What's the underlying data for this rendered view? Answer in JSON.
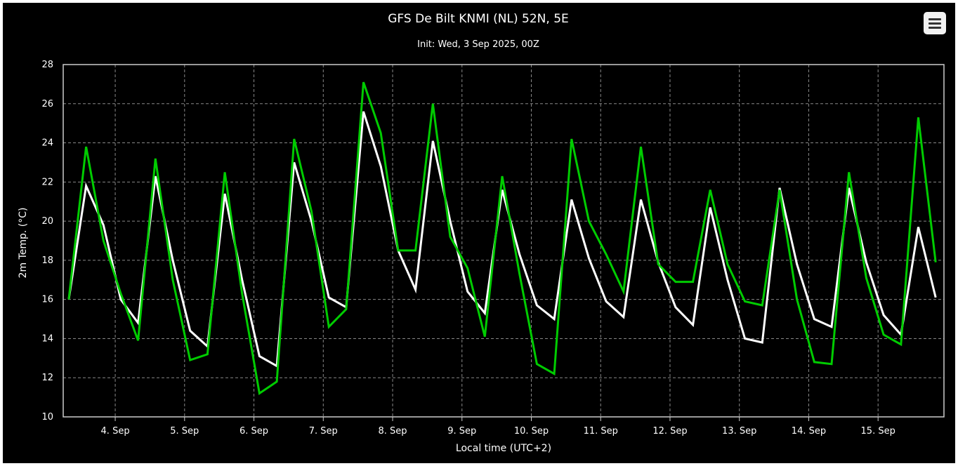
{
  "chart_data": {
    "type": "line",
    "title": "GFS De Bilt KNMI (NL) 52N, 5E",
    "subtitle": "Init: Wed, 3 Sep 2025, 00Z",
    "xlabel": "Local time (UTC+2)",
    "ylabel": "2m Temp. (°C)",
    "ylim": [
      10,
      28
    ],
    "yticks": [
      10,
      12,
      14,
      16,
      18,
      20,
      22,
      24,
      26,
      28
    ],
    "xlim": [
      3.25,
      15.95
    ],
    "xticks": [
      {
        "x": 4,
        "label": "4. Sep"
      },
      {
        "x": 5,
        "label": "5. Sep"
      },
      {
        "x": 6,
        "label": "6. Sep"
      },
      {
        "x": 7,
        "label": "7. Sep"
      },
      {
        "x": 8,
        "label": "8. Sep"
      },
      {
        "x": 9,
        "label": "9. Sep"
      },
      {
        "x": 10,
        "label": "10. Sep"
      },
      {
        "x": 11,
        "label": "11. Sep"
      },
      {
        "x": 12,
        "label": "12. Sep"
      },
      {
        "x": 13,
        "label": "13. Sep"
      },
      {
        "x": 14,
        "label": "14. Sep"
      },
      {
        "x": 15,
        "label": "15. Sep"
      }
    ],
    "grid": true,
    "legend": false,
    "colors": {
      "background": "#000000",
      "grid": "#888888",
      "series_a": "#ffffff",
      "series_b": "#00cc00"
    },
    "series": [
      {
        "color": "#ffffff",
        "x": [
          3.33,
          3.58,
          3.83,
          4.08,
          4.33,
          4.58,
          4.83,
          5.08,
          5.33,
          5.58,
          5.83,
          6.08,
          6.33,
          6.58,
          6.83,
          7.08,
          7.33,
          7.58,
          7.83,
          8.08,
          8.33,
          8.58,
          8.83,
          9.08,
          9.33,
          9.58,
          9.83,
          10.08,
          10.33,
          10.58,
          10.83,
          11.08,
          11.33,
          11.58,
          11.83,
          12.08,
          12.33,
          12.58,
          12.83,
          13.08,
          13.33,
          13.58,
          13.83,
          14.08,
          14.33,
          14.58,
          14.83,
          15.08,
          15.33,
          15.58,
          15.83
        ],
        "y": [
          16.0,
          21.8,
          19.8,
          16.0,
          14.8,
          22.3,
          18.0,
          14.4,
          13.6,
          21.4,
          17.0,
          13.1,
          12.6,
          23.0,
          20.0,
          16.1,
          15.6,
          25.6,
          22.8,
          18.5,
          16.5,
          24.1,
          20.0,
          16.4,
          15.3,
          21.6,
          18.3,
          15.7,
          15.0,
          21.1,
          18.1,
          15.9,
          15.1,
          21.1,
          17.9,
          15.6,
          14.7,
          20.7,
          17.0,
          14.0,
          13.8,
          21.7,
          17.8,
          15.0,
          14.6,
          21.7,
          17.9,
          15.2,
          14.2,
          19.7,
          16.1
        ]
      },
      {
        "color": "#00cc00",
        "x": [
          3.33,
          3.58,
          3.83,
          4.08,
          4.33,
          4.58,
          4.83,
          5.08,
          5.33,
          5.58,
          5.83,
          6.08,
          6.33,
          6.58,
          6.83,
          7.08,
          7.33,
          7.58,
          7.83,
          8.08,
          8.33,
          8.58,
          8.83,
          9.08,
          9.33,
          9.58,
          9.83,
          10.08,
          10.33,
          10.58,
          10.83,
          11.08,
          11.33,
          11.58,
          11.83,
          12.08,
          12.33,
          12.58,
          12.83,
          13.08,
          13.33,
          13.58,
          13.83,
          14.08,
          14.33,
          14.58,
          14.83,
          15.08,
          15.33,
          15.58,
          15.83
        ],
        "y": [
          16.0,
          23.8,
          19.0,
          16.3,
          13.9,
          23.2,
          17.0,
          12.9,
          13.2,
          22.5,
          16.3,
          11.2,
          11.8,
          24.2,
          20.5,
          14.6,
          15.5,
          27.1,
          24.5,
          18.5,
          18.5,
          26.0,
          19.2,
          17.6,
          14.1,
          22.3,
          17.3,
          12.7,
          12.2,
          24.2,
          20.0,
          18.3,
          16.4,
          23.8,
          17.8,
          16.9,
          16.9,
          21.6,
          17.8,
          15.9,
          15.7,
          21.6,
          16.0,
          12.8,
          12.7,
          22.5,
          17.1,
          14.2,
          13.7,
          25.3,
          17.9
        ]
      }
    ]
  }
}
